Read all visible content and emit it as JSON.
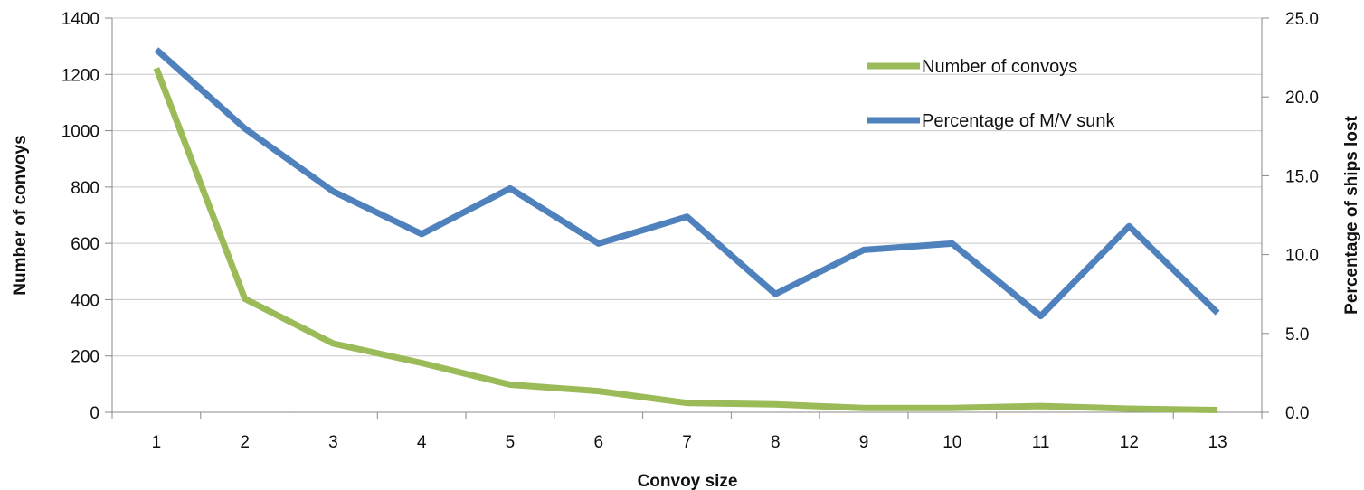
{
  "chart_data": {
    "type": "line",
    "x": [
      1,
      2,
      3,
      4,
      5,
      6,
      7,
      8,
      9,
      10,
      11,
      12,
      13
    ],
    "xlabel": "Convoy size",
    "ylabel": "Number of convoys",
    "y2label": "Percentage of ships lost",
    "ylim": [
      0,
      1400
    ],
    "y2lim": [
      0,
      25
    ],
    "yticks": [
      "0",
      "200",
      "400",
      "600",
      "800",
      "1000",
      "1200",
      "1400"
    ],
    "y2ticks": [
      "0.0",
      "5.0",
      "10.0",
      "15.0",
      "20.0",
      "25.0"
    ],
    "xticks": [
      "1",
      "2",
      "3",
      "4",
      "5",
      "6",
      "7",
      "8",
      "9",
      "10",
      "11",
      "12",
      "13"
    ],
    "grid": "horizontal",
    "legend_position": "top-right",
    "series": [
      {
        "name": "Number of convoys",
        "axis": "left",
        "color": "#9BBB59",
        "values": [
          1222,
          403,
          244,
          175,
          98,
          75,
          33,
          28,
          15,
          15,
          22,
          13,
          8
        ]
      },
      {
        "name": "Percentage of M/V sunk",
        "axis": "right",
        "color": "#4F81BD",
        "values": [
          23.0,
          18.0,
          14.0,
          11.3,
          14.2,
          10.7,
          12.4,
          7.5,
          10.3,
          10.7,
          6.1,
          11.8,
          6.3
        ]
      }
    ]
  }
}
